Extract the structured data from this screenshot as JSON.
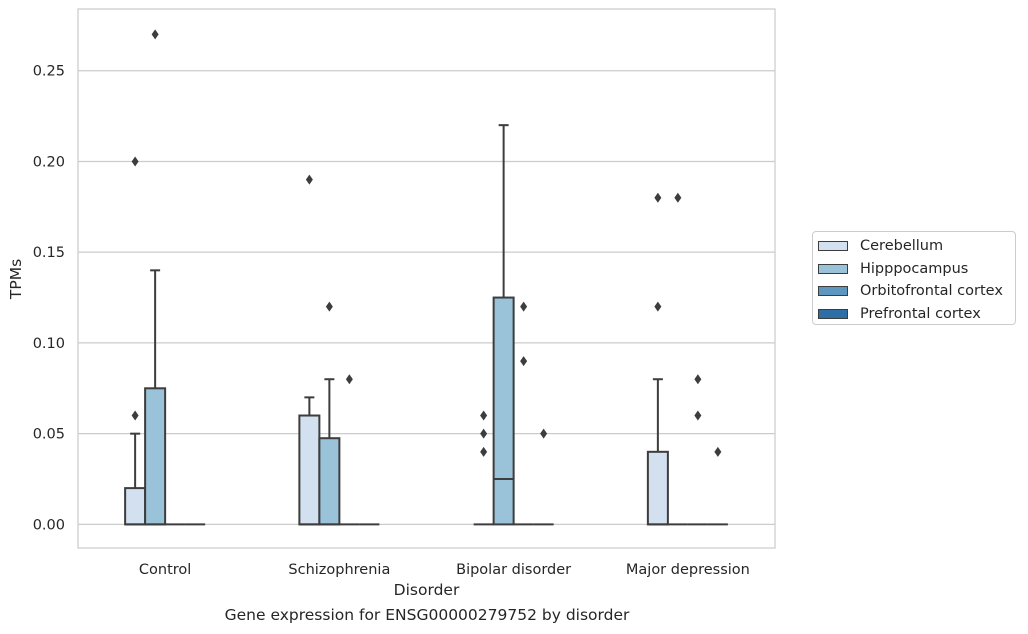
{
  "chart_data": {
    "type": "box",
    "title": "",
    "caption": "Gene expression for ENSG00000279752 by disorder",
    "xlabel": "Disorder",
    "ylabel": "TPMs",
    "ylim": [
      -0.013,
      0.284
    ],
    "yticks": [
      "0.00",
      "0.05",
      "0.10",
      "0.15",
      "0.20",
      "0.25"
    ],
    "grid": "horizontal",
    "legend_position": "outside-right",
    "categories": [
      "Control",
      "Schizophrenia",
      "Bipolar disorder",
      "Major depression"
    ],
    "series": [
      {
        "name": "Cerebellum",
        "color": "#d2e0ef",
        "boxes": [
          {
            "q1": 0,
            "median": 0,
            "q3": 0.02,
            "whisker_low": 0,
            "whisker_high": 0.05,
            "outliers": [
              0.06,
              0.2
            ]
          },
          {
            "q1": 0,
            "median": 0,
            "q3": 0.06,
            "whisker_low": 0,
            "whisker_high": 0.07,
            "outliers": [
              0.19
            ]
          },
          {
            "q1": 0,
            "median": 0,
            "q3": 0,
            "whisker_low": 0,
            "whisker_high": 0,
            "outliers": [
              0.04,
              0.05,
              0.06
            ]
          },
          {
            "q1": 0,
            "median": 0,
            "q3": 0.04,
            "whisker_low": 0,
            "whisker_high": 0.08,
            "outliers": [
              0.12,
              0.18
            ]
          }
        ]
      },
      {
        "name": "Hipppocampus",
        "color": "#9ac2d8",
        "boxes": [
          {
            "q1": 0,
            "median": 0,
            "q3": 0.075,
            "whisker_low": 0,
            "whisker_high": 0.14,
            "outliers": [
              0.27
            ]
          },
          {
            "q1": 0,
            "median": 0,
            "q3": 0.0475,
            "whisker_low": 0,
            "whisker_high": 0.08,
            "outliers": [
              0.12
            ]
          },
          {
            "q1": 0,
            "median": 0.025,
            "q3": 0.125,
            "whisker_low": 0,
            "whisker_high": 0.22,
            "outliers": []
          },
          {
            "q1": 0,
            "median": 0,
            "q3": 0,
            "whisker_low": 0,
            "whisker_high": 0,
            "outliers": [
              0.18
            ]
          }
        ]
      },
      {
        "name": "Orbitofrontal cortex",
        "color": "#5d97c0",
        "boxes": [
          {
            "q1": 0,
            "median": 0,
            "q3": 0,
            "whisker_low": 0,
            "whisker_high": 0,
            "outliers": []
          },
          {
            "q1": 0,
            "median": 0,
            "q3": 0,
            "whisker_low": 0,
            "whisker_high": 0,
            "outliers": [
              0.08
            ]
          },
          {
            "q1": 0,
            "median": 0,
            "q3": 0,
            "whisker_low": 0,
            "whisker_high": 0,
            "outliers": [
              0.09,
              0.12
            ]
          },
          {
            "q1": 0,
            "median": 0,
            "q3": 0,
            "whisker_low": 0,
            "whisker_high": 0,
            "outliers": [
              0.06,
              0.08
            ]
          }
        ]
      },
      {
        "name": "Prefrontal cortex",
        "color": "#2c6ea5",
        "boxes": [
          {
            "q1": 0,
            "median": 0,
            "q3": 0,
            "whisker_low": 0,
            "whisker_high": 0,
            "outliers": []
          },
          {
            "q1": 0,
            "median": 0,
            "q3": 0,
            "whisker_low": 0,
            "whisker_high": 0,
            "outliers": []
          },
          {
            "q1": 0,
            "median": 0,
            "q3": 0,
            "whisker_low": 0,
            "whisker_high": 0,
            "outliers": [
              0.05
            ]
          },
          {
            "q1": 0,
            "median": 0,
            "q3": 0,
            "whisker_low": 0,
            "whisker_high": 0,
            "outliers": [
              0.04
            ]
          }
        ]
      }
    ]
  }
}
